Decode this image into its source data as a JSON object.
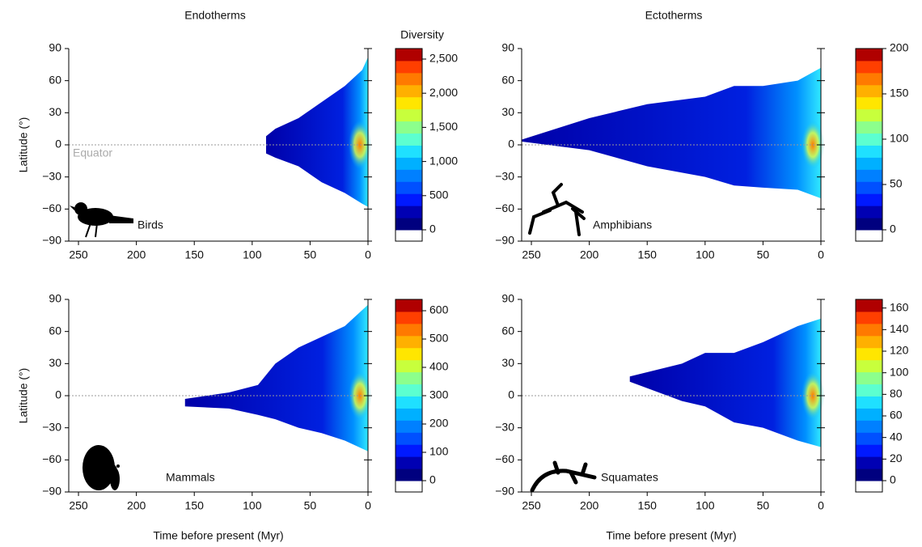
{
  "chart_data": [
    {
      "type": "heatmap",
      "title": "Endotherms",
      "ylabel": "Latitude (°)",
      "taxon": "Birds",
      "annotation": "Equator",
      "xlim": [
        258.4,
        0
      ],
      "ylim": [
        -90,
        90
      ],
      "xticks": [
        250,
        200,
        150,
        100,
        50,
        0
      ],
      "yticks": [
        90,
        60,
        30,
        0,
        {
          "value": -30,
          "label": "−30"
        },
        {
          "value": -60,
          "label": "−60"
        },
        {
          "value": -90,
          "label": "−90"
        }
      ],
      "colorbar": {
        "title": "Diversity",
        "lim": [
          0,
          2654
        ],
        "ticks": [
          0,
          500,
          {
            "value": 1000,
            "label": "1,000"
          },
          {
            "value": 1500,
            "label": "1,500"
          },
          {
            "value": 2000,
            "label": "2,000"
          },
          {
            "value": 2500,
            "label": "2,500"
          }
        ],
        "colors": [
          "#00007f",
          "#0000b3",
          "#0019ff",
          "#0050ff",
          "#0080ff",
          "#00b0ff",
          "#1fe0ff",
          "#5cffd0",
          "#8cff8c",
          "#c8ff3c",
          "#ffe600",
          "#ffb000",
          "#ff7a00",
          "#ff3f00",
          "#b00000"
        ]
      },
      "envelope": {
        "x": [
          88,
          80,
          60,
          40,
          20,
          5,
          0
        ],
        "upper": [
          8,
          15,
          25,
          40,
          55,
          70,
          82
        ],
        "lower": [
          -8,
          -12,
          -20,
          -35,
          -45,
          -55,
          -58
        ]
      }
    },
    {
      "type": "heatmap",
      "title": "Ectotherms",
      "taxon": "Amphibians",
      "xlim": [
        258.4,
        0
      ],
      "ylim": [
        -90,
        90
      ],
      "xticks": [
        250,
        200,
        150,
        100,
        50,
        0
      ],
      "yticks": [
        90,
        60,
        30,
        0,
        {
          "value": -30,
          "label": "−30"
        },
        {
          "value": -60,
          "label": "−60"
        },
        {
          "value": -90,
          "label": "−90"
        }
      ],
      "colorbar": {
        "lim": [
          0,
          200
        ],
        "ticks": [
          0,
          50,
          100,
          150,
          200
        ],
        "colors": [
          "#00007f",
          "#0000b3",
          "#0019ff",
          "#0050ff",
          "#0080ff",
          "#00b0ff",
          "#1fe0ff",
          "#5cffd0",
          "#8cff8c",
          "#c8ff3c",
          "#ffe600",
          "#ffb000",
          "#ff7a00",
          "#ff3f00",
          "#b00000"
        ]
      },
      "envelope": {
        "x": [
          258,
          200,
          150,
          100,
          75,
          50,
          20,
          0
        ],
        "upper": [
          5,
          25,
          38,
          45,
          55,
          55,
          60,
          72
        ],
        "lower": [
          3,
          -5,
          -20,
          -30,
          -38,
          -40,
          -42,
          -50
        ]
      }
    },
    {
      "type": "heatmap",
      "ylabel": "Latitude (°)",
      "xlabel": "Time before present (Myr)",
      "taxon": "Mammals",
      "xlim": [
        258.4,
        0
      ],
      "ylim": [
        -90,
        90
      ],
      "xticks": [
        250,
        200,
        150,
        100,
        50,
        0
      ],
      "yticks": [
        90,
        60,
        30,
        0,
        {
          "value": -30,
          "label": "−30"
        },
        {
          "value": -60,
          "label": "−60"
        },
        {
          "value": -90,
          "label": "−90"
        }
      ],
      "colorbar": {
        "lim": [
          0,
          640
        ],
        "ticks": [
          0,
          100,
          200,
          300,
          400,
          500,
          600
        ],
        "colors": [
          "#00007f",
          "#0000b3",
          "#0019ff",
          "#0050ff",
          "#0080ff",
          "#00b0ff",
          "#1fe0ff",
          "#5cffd0",
          "#8cff8c",
          "#c8ff3c",
          "#ffe600",
          "#ffb000",
          "#ff7a00",
          "#ff3f00",
          "#b00000"
        ]
      },
      "envelope": {
        "x": [
          158,
          120,
          95,
          80,
          60,
          40,
          20,
          0
        ],
        "upper": [
          -3,
          3,
          10,
          30,
          45,
          55,
          65,
          85
        ],
        "lower": [
          -10,
          -12,
          -18,
          -22,
          -30,
          -35,
          -42,
          -52
        ]
      }
    },
    {
      "type": "heatmap",
      "xlabel": "Time before present (Myr)",
      "taxon": "Squamates",
      "xlim": [
        258.4,
        0
      ],
      "ylim": [
        -90,
        90
      ],
      "xticks": [
        250,
        200,
        150,
        100,
        50,
        0
      ],
      "yticks": [
        90,
        60,
        30,
        0,
        {
          "value": -30,
          "label": "−30"
        },
        {
          "value": -60,
          "label": "−60"
        },
        {
          "value": -90,
          "label": "−90"
        }
      ],
      "colorbar": {
        "lim": [
          0,
          168
        ],
        "ticks": [
          0,
          20,
          40,
          60,
          80,
          100,
          120,
          140,
          160
        ],
        "colors": [
          "#00007f",
          "#0000b3",
          "#0019ff",
          "#0050ff",
          "#0080ff",
          "#00b0ff",
          "#1fe0ff",
          "#5cffd0",
          "#8cff8c",
          "#c8ff3c",
          "#ffe600",
          "#ffb000",
          "#ff7a00",
          "#ff3f00",
          "#b00000"
        ]
      },
      "envelope": {
        "x": [
          165,
          120,
          100,
          75,
          50,
          20,
          0
        ],
        "upper": [
          18,
          30,
          40,
          40,
          50,
          65,
          72
        ],
        "lower": [
          13,
          -5,
          -10,
          -25,
          -30,
          -42,
          -48
        ]
      }
    }
  ]
}
